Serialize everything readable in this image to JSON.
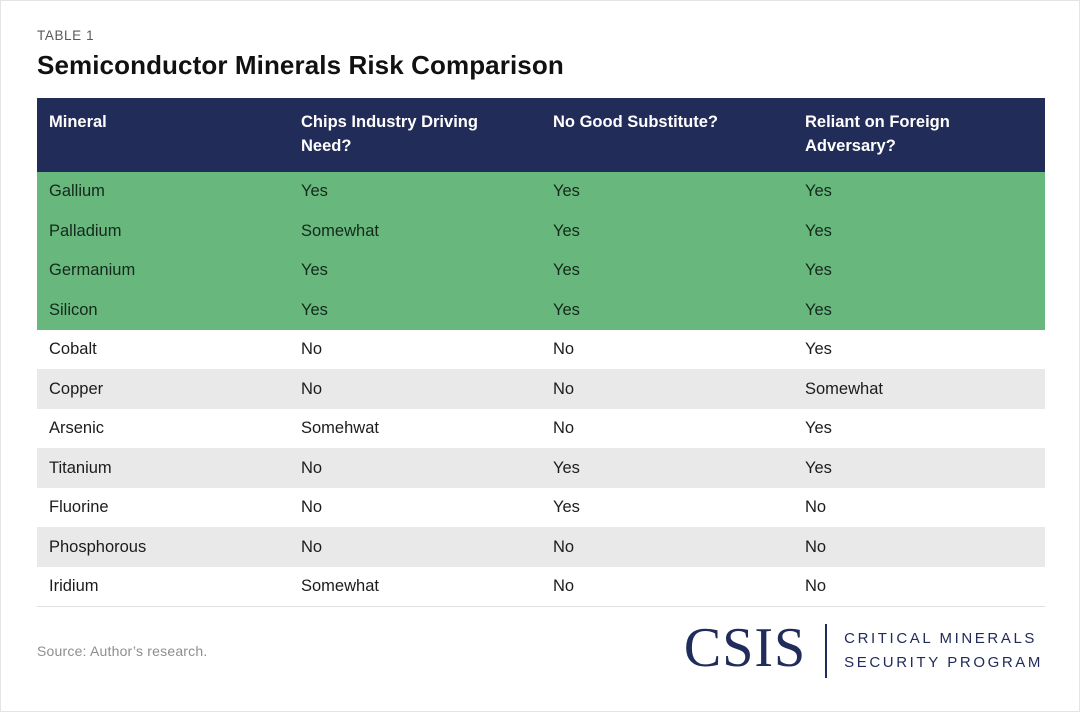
{
  "page": {
    "table_label": "TABLE 1",
    "title": "Semiconductor Minerals Risk Comparison",
    "source_note": "Source: Author’s research."
  },
  "table": {
    "columns": [
      "Mineral",
      "Chips Industry Driving Need?",
      "No Good Substitute?",
      "Reliant on Foreign Adversary?"
    ],
    "rows": [
      {
        "mineral": "Gallium",
        "chips": "Yes",
        "substitute": "Yes",
        "adversary": "Yes",
        "highlight": true
      },
      {
        "mineral": "Palladium",
        "chips": "Somewhat",
        "substitute": "Yes",
        "adversary": "Yes",
        "highlight": true
      },
      {
        "mineral": "Germanium",
        "chips": "Yes",
        "substitute": "Yes",
        "adversary": "Yes",
        "highlight": true
      },
      {
        "mineral": "Silicon",
        "chips": "Yes",
        "substitute": "Yes",
        "adversary": "Yes",
        "highlight": true
      },
      {
        "mineral": "Cobalt",
        "chips": "No",
        "substitute": "No",
        "adversary": "Yes",
        "highlight": false
      },
      {
        "mineral": "Copper",
        "chips": "No",
        "substitute": "No",
        "adversary": "Somewhat",
        "highlight": false
      },
      {
        "mineral": "Arsenic",
        "chips": "Somehwat",
        "substitute": "No",
        "adversary": "Yes",
        "highlight": false
      },
      {
        "mineral": "Titanium",
        "chips": "No",
        "substitute": "Yes",
        "adversary": "Yes",
        "highlight": false
      },
      {
        "mineral": "Fluorine",
        "chips": "No",
        "substitute": "Yes",
        "adversary": "No",
        "highlight": false
      },
      {
        "mineral": "Phosphorous",
        "chips": "No",
        "substitute": "No",
        "adversary": "No",
        "highlight": false
      },
      {
        "mineral": "Iridium",
        "chips": "Somewhat",
        "substitute": "No",
        "adversary": "No",
        "highlight": false
      }
    ]
  },
  "logo": {
    "acronym": "CSIS",
    "program_line1": "CRITICAL MINERALS",
    "program_line2": "SECURITY PROGRAM"
  },
  "colors": {
    "header_bg": "#222c58",
    "highlight_green": "#68b87e",
    "row_alt_gray": "#e8e9e8",
    "logo_navy": "#202c5a"
  },
  "chart_data": {
    "type": "table",
    "title": "Semiconductor Minerals Risk Comparison",
    "label": "TABLE 1",
    "columns": [
      "Mineral",
      "Chips Industry Driving Need?",
      "No Good Substitute?",
      "Reliant on Foreign Adversary?"
    ],
    "rows": [
      [
        "Gallium",
        "Yes",
        "Yes",
        "Yes"
      ],
      [
        "Palladium",
        "Somewhat",
        "Yes",
        "Yes"
      ],
      [
        "Germanium",
        "Yes",
        "Yes",
        "Yes"
      ],
      [
        "Silicon",
        "Yes",
        "Yes",
        "Yes"
      ],
      [
        "Cobalt",
        "No",
        "No",
        "Yes"
      ],
      [
        "Copper",
        "No",
        "No",
        "Somewhat"
      ],
      [
        "Arsenic",
        "Somehwat",
        "No",
        "Yes"
      ],
      [
        "Titanium",
        "No",
        "Yes",
        "Yes"
      ],
      [
        "Fluorine",
        "No",
        "Yes",
        "No"
      ],
      [
        "Phosphorous",
        "No",
        "No",
        "No"
      ],
      [
        "Iridium",
        "Somewhat",
        "No",
        "No"
      ]
    ],
    "highlighted_rows": [
      "Gallium",
      "Palladium",
      "Germanium",
      "Silicon"
    ],
    "highlight_meaning_color": "#68b87e",
    "source": "Source: Author’s research."
  }
}
